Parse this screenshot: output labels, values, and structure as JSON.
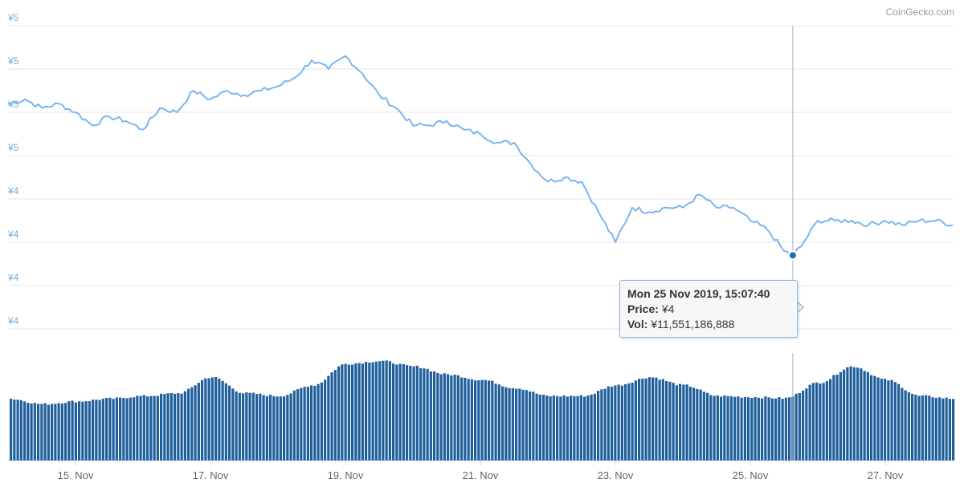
{
  "credit": "CoinGecko.com",
  "colors": {
    "price_line": "#7cb5ec",
    "volume_bar": "#1f5f9c",
    "grid": "#e6e6e6",
    "y_label": "#6aaee3",
    "x_label": "#666666",
    "crosshair": "#b0b0b0",
    "marker": "#1f6fb2"
  },
  "tooltip": {
    "title": "Mon 25 Nov 2019, 15:07:40",
    "price_key": "Price:",
    "price_value": "¥4",
    "vol_key": "Vol:",
    "vol_value": "¥11,551,186,888"
  },
  "chart_data": {
    "type": "line",
    "title": "",
    "x_start": "2019-11-14",
    "x_end": "2019-11-28",
    "x_ticks": [
      "15. Nov",
      "17. Nov",
      "19. Nov",
      "21. Nov",
      "23. Nov",
      "25. Nov",
      "27. Nov"
    ],
    "y_tick_labels": [
      "¥5",
      "¥5",
      "¥5",
      "¥5",
      "¥4",
      "¥4",
      "¥4",
      "¥4"
    ],
    "ylim": [
      4.2,
      4.9
    ],
    "grid": true,
    "legend": "none",
    "crosshair_x": "2019-11-25 15:07",
    "series": [
      {
        "name": "Price",
        "points": [
          [
            "2019-11-14 00:00",
            4.72
          ],
          [
            "2019-11-14 06:00",
            4.73
          ],
          [
            "2019-11-14 12:00",
            4.71
          ],
          [
            "2019-11-14 18:00",
            4.72
          ],
          [
            "2019-11-15 00:00",
            4.7
          ],
          [
            "2019-11-15 06:00",
            4.67
          ],
          [
            "2019-11-15 12:00",
            4.69
          ],
          [
            "2019-11-15 18:00",
            4.68
          ],
          [
            "2019-11-16 00:00",
            4.66
          ],
          [
            "2019-11-16 06:00",
            4.71
          ],
          [
            "2019-11-16 12:00",
            4.7
          ],
          [
            "2019-11-16 18:00",
            4.75
          ],
          [
            "2019-11-17 00:00",
            4.73
          ],
          [
            "2019-11-17 06:00",
            4.75
          ],
          [
            "2019-11-17 12:00",
            4.74
          ],
          [
            "2019-11-17 18:00",
            4.75
          ],
          [
            "2019-11-18 00:00",
            4.76
          ],
          [
            "2019-11-18 06:00",
            4.78
          ],
          [
            "2019-11-18 12:00",
            4.82
          ],
          [
            "2019-11-18 18:00",
            4.8
          ],
          [
            "2019-11-19 00:00",
            4.83
          ],
          [
            "2019-11-19 06:00",
            4.79
          ],
          [
            "2019-11-19 12:00",
            4.74
          ],
          [
            "2019-11-19 18:00",
            4.71
          ],
          [
            "2019-11-20 00:00",
            4.67
          ],
          [
            "2019-11-20 06:00",
            4.67
          ],
          [
            "2019-11-20 12:00",
            4.68
          ],
          [
            "2019-11-20 18:00",
            4.66
          ],
          [
            "2019-11-21 00:00",
            4.65
          ],
          [
            "2019-11-21 06:00",
            4.63
          ],
          [
            "2019-11-21 12:00",
            4.63
          ],
          [
            "2019-11-21 18:00",
            4.58
          ],
          [
            "2019-11-22 00:00",
            4.54
          ],
          [
            "2019-11-22 06:00",
            4.55
          ],
          [
            "2019-11-22 12:00",
            4.54
          ],
          [
            "2019-11-22 18:00",
            4.47
          ],
          [
            "2019-11-23 00:00",
            4.4
          ],
          [
            "2019-11-23 06:00",
            4.48
          ],
          [
            "2019-11-23 12:00",
            4.47
          ],
          [
            "2019-11-23 18:00",
            4.48
          ],
          [
            "2019-11-24 00:00",
            4.48
          ],
          [
            "2019-11-24 06:00",
            4.51
          ],
          [
            "2019-11-24 12:00",
            4.48
          ],
          [
            "2019-11-24 18:00",
            4.48
          ],
          [
            "2019-11-25 00:00",
            4.45
          ],
          [
            "2019-11-25 06:00",
            4.43
          ],
          [
            "2019-11-25 12:00",
            4.38
          ],
          [
            "2019-11-25 15:07",
            4.37
          ],
          [
            "2019-11-25 18:00",
            4.39
          ],
          [
            "2019-11-26 00:00",
            4.45
          ],
          [
            "2019-11-26 06:00",
            4.45
          ],
          [
            "2019-11-26 12:00",
            4.45
          ],
          [
            "2019-11-26 18:00",
            4.44
          ],
          [
            "2019-11-27 00:00",
            4.45
          ],
          [
            "2019-11-27 06:00",
            4.44
          ],
          [
            "2019-11-27 12:00",
            4.45
          ],
          [
            "2019-11-27 18:00",
            4.45
          ],
          [
            "2019-11-28 00:00",
            4.44
          ]
        ]
      },
      {
        "name": "Vol",
        "points": [
          [
            "2019-11-14 00:00",
            11.5
          ],
          [
            "2019-11-14 12:00",
            10.5
          ],
          [
            "2019-11-15 00:00",
            11.0
          ],
          [
            "2019-11-15 12:00",
            11.5
          ],
          [
            "2019-11-16 00:00",
            12.0
          ],
          [
            "2019-11-16 12:00",
            12.5
          ],
          [
            "2019-11-17 00:00",
            15.5
          ],
          [
            "2019-11-17 12:00",
            12.5
          ],
          [
            "2019-11-18 00:00",
            12.0
          ],
          [
            "2019-11-18 12:00",
            14.0
          ],
          [
            "2019-11-19 00:00",
            18.0
          ],
          [
            "2019-11-19 12:00",
            18.5
          ],
          [
            "2019-11-20 00:00",
            17.5
          ],
          [
            "2019-11-20 12:00",
            16.0
          ],
          [
            "2019-11-21 00:00",
            15.0
          ],
          [
            "2019-11-21 12:00",
            13.5
          ],
          [
            "2019-11-22 00:00",
            12.0
          ],
          [
            "2019-11-22 12:00",
            12.0
          ],
          [
            "2019-11-23 00:00",
            14.0
          ],
          [
            "2019-11-23 12:00",
            15.5
          ],
          [
            "2019-11-24 00:00",
            14.0
          ],
          [
            "2019-11-24 12:00",
            12.0
          ],
          [
            "2019-11-25 00:00",
            11.8
          ],
          [
            "2019-11-25 12:00",
            11.6
          ],
          [
            "2019-11-26 00:00",
            14.5
          ],
          [
            "2019-11-26 12:00",
            17.5
          ],
          [
            "2019-11-27 00:00",
            15.0
          ],
          [
            "2019-11-27 12:00",
            12.0
          ],
          [
            "2019-11-28 00:00",
            11.5
          ]
        ]
      }
    ]
  }
}
